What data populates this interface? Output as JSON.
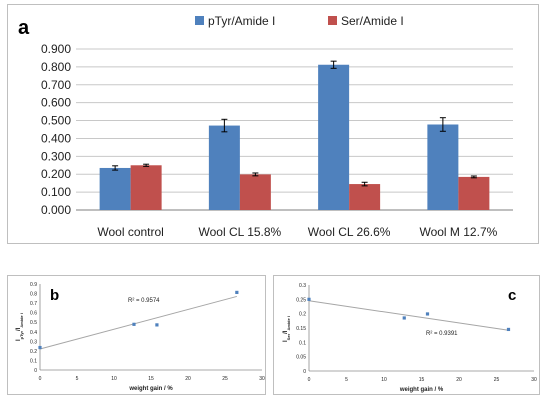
{
  "chart_data": [
    {
      "type": "bar",
      "panel_label": "a",
      "categories": [
        "Wool control",
        "Wool CL 15.8%",
        "Wool CL 26.6%",
        "Wool M 12.7%"
      ],
      "series": [
        {
          "name": "pTyr/Amide I",
          "color": "#4f81bd",
          "values": [
            0.235,
            0.472,
            0.812,
            0.478
          ],
          "errors": [
            0.012,
            0.035,
            0.02,
            0.038
          ]
        },
        {
          "name": "Ser/Amide I",
          "color": "#c0504d",
          "values": [
            0.25,
            0.199,
            0.145,
            0.185
          ],
          "errors": [
            0.006,
            0.008,
            0.01,
            0.005
          ]
        }
      ],
      "ylim": [
        0,
        0.9
      ],
      "yticks": [
        "0.000",
        "0.100",
        "0.200",
        "0.300",
        "0.400",
        "0.500",
        "0.600",
        "0.700",
        "0.800",
        "0.900"
      ],
      "grid": true,
      "legend": "top-center"
    },
    {
      "type": "scatter",
      "panel_label": "b",
      "x": [
        0,
        12.7,
        15.8,
        26.6
      ],
      "y": [
        0.235,
        0.478,
        0.472,
        0.812
      ],
      "trendline": {
        "x": [
          0,
          26.6
        ],
        "y": [
          0.22,
          0.77
        ]
      },
      "r2_label": "R² = 0.9574",
      "xlabel": "weight gain / %",
      "ylabel_main": "I",
      "ylabel_sub1": "pTyr",
      "ylabel_mid": "/I",
      "ylabel_sub2": "Amide I",
      "xlim": [
        0,
        30
      ],
      "ylim": [
        0,
        0.9
      ],
      "xticks": [
        "0",
        "5",
        "10",
        "15",
        "20",
        "25",
        "30"
      ],
      "yticks": [
        "0",
        "0.1",
        "0.2",
        "0.3",
        "0.4",
        "0.5",
        "0.6",
        "0.7",
        "0.8",
        "0.9"
      ],
      "color": "#4f81bd"
    },
    {
      "type": "scatter",
      "panel_label": "c",
      "x": [
        0,
        12.7,
        15.8,
        26.6
      ],
      "y": [
        0.25,
        0.185,
        0.199,
        0.145
      ],
      "trendline": {
        "x": [
          0,
          26.6
        ],
        "y": [
          0.245,
          0.142
        ]
      },
      "r2_label": "R² = 0.9391",
      "xlabel": "weight gain / %",
      "ylabel_main": "I",
      "ylabel_sub1": "Ser",
      "ylabel_mid": "/I",
      "ylabel_sub2": "Amide I",
      "xlim": [
        0,
        30
      ],
      "ylim": [
        0,
        0.3
      ],
      "xticks": [
        "0",
        "5",
        "10",
        "15",
        "20",
        "25",
        "30"
      ],
      "yticks": [
        "0",
        "0.05",
        "0.1",
        "0.15",
        "0.2",
        "0.25",
        "0.3"
      ],
      "color": "#4f81bd"
    }
  ]
}
